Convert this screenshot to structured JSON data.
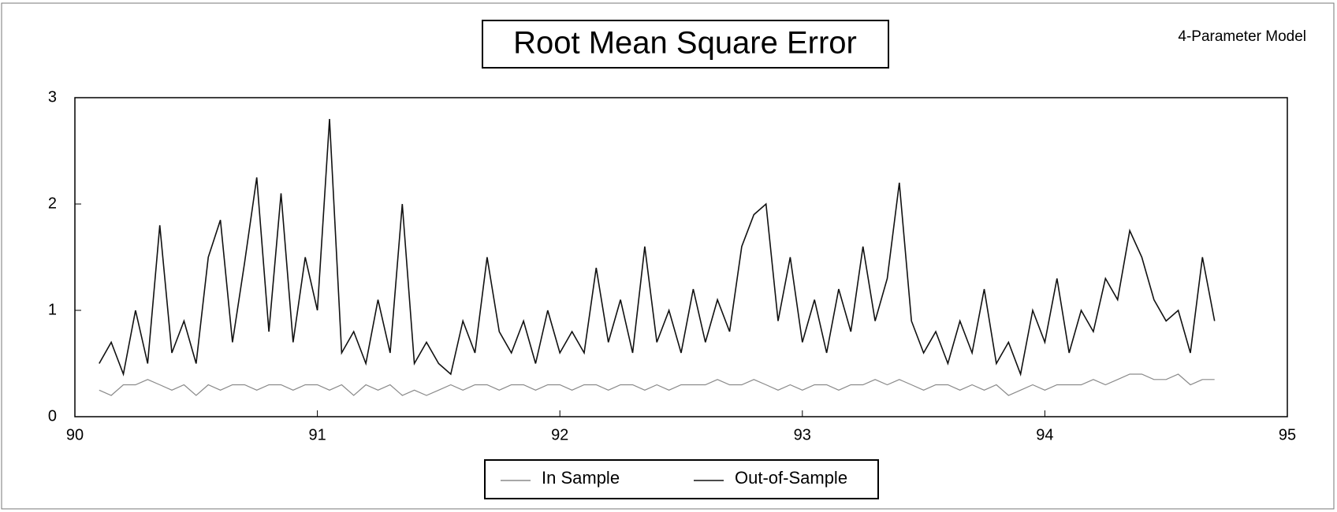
{
  "chart_data": {
    "type": "line",
    "title": "Root Mean Square Error",
    "subtitle": "4-Parameter Model",
    "x": [
      90.1,
      90.15,
      90.2,
      90.25,
      90.3,
      90.35,
      90.4,
      90.45,
      90.5,
      90.55,
      90.6,
      90.65,
      90.7,
      90.75,
      90.8,
      90.85,
      90.9,
      90.95,
      91.0,
      91.05,
      91.1,
      91.15,
      91.2,
      91.25,
      91.3,
      91.35,
      91.4,
      91.45,
      91.5,
      91.55,
      91.6,
      91.65,
      91.7,
      91.75,
      91.8,
      91.85,
      91.9,
      91.95,
      92.0,
      92.05,
      92.1,
      92.15,
      92.2,
      92.25,
      92.3,
      92.35,
      92.4,
      92.45,
      92.5,
      92.55,
      92.6,
      92.65,
      92.7,
      92.75,
      92.8,
      92.85,
      92.9,
      92.95,
      93.0,
      93.05,
      93.1,
      93.15,
      93.2,
      93.25,
      93.3,
      93.35,
      93.4,
      93.45,
      93.5,
      93.55,
      93.6,
      93.65,
      93.7,
      93.75,
      93.8,
      93.85,
      93.9,
      93.95,
      94.0,
      94.05,
      94.1,
      94.15,
      94.2,
      94.25,
      94.3,
      94.35,
      94.4,
      94.45,
      94.5,
      94.55,
      94.6,
      94.65,
      94.7
    ],
    "series": [
      {
        "name": "In Sample",
        "color": "#8a8a8a",
        "values": [
          0.25,
          0.2,
          0.3,
          0.3,
          0.35,
          0.3,
          0.25,
          0.3,
          0.2,
          0.3,
          0.25,
          0.3,
          0.3,
          0.25,
          0.3,
          0.3,
          0.25,
          0.3,
          0.3,
          0.25,
          0.3,
          0.2,
          0.3,
          0.25,
          0.3,
          0.2,
          0.25,
          0.2,
          0.25,
          0.3,
          0.25,
          0.3,
          0.3,
          0.25,
          0.3,
          0.3,
          0.25,
          0.3,
          0.3,
          0.25,
          0.3,
          0.3,
          0.25,
          0.3,
          0.3,
          0.25,
          0.3,
          0.25,
          0.3,
          0.3,
          0.3,
          0.35,
          0.3,
          0.3,
          0.35,
          0.3,
          0.25,
          0.3,
          0.25,
          0.3,
          0.3,
          0.25,
          0.3,
          0.3,
          0.35,
          0.3,
          0.35,
          0.3,
          0.25,
          0.3,
          0.3,
          0.25,
          0.3,
          0.25,
          0.3,
          0.2,
          0.25,
          0.3,
          0.25,
          0.3,
          0.3,
          0.3,
          0.35,
          0.3,
          0.35,
          0.4,
          0.4,
          0.35,
          0.35,
          0.4,
          0.3,
          0.35,
          0.35
        ]
      },
      {
        "name": "Out-of-Sample",
        "color": "#111111",
        "values": [
          0.5,
          0.7,
          0.4,
          1.0,
          0.5,
          1.8,
          0.6,
          0.9,
          0.5,
          1.5,
          1.85,
          0.7,
          1.45,
          2.25,
          0.8,
          2.1,
          0.7,
          1.5,
          1.0,
          2.8,
          0.6,
          0.8,
          0.5,
          1.1,
          0.6,
          2.0,
          0.5,
          0.7,
          0.5,
          0.4,
          0.9,
          0.6,
          1.5,
          0.8,
          0.6,
          0.9,
          0.5,
          1.0,
          0.6,
          0.8,
          0.6,
          1.4,
          0.7,
          1.1,
          0.6,
          1.6,
          0.7,
          1.0,
          0.6,
          1.2,
          0.7,
          1.1,
          0.8,
          1.6,
          1.9,
          2.0,
          0.9,
          1.5,
          0.7,
          1.1,
          0.6,
          1.2,
          0.8,
          1.6,
          0.9,
          1.3,
          2.2,
          0.9,
          0.6,
          0.8,
          0.5,
          0.9,
          0.6,
          1.2,
          0.5,
          0.7,
          0.4,
          1.0,
          0.7,
          1.3,
          0.6,
          1.0,
          0.8,
          1.3,
          1.1,
          1.75,
          1.5,
          1.1,
          0.9,
          1.0,
          0.6,
          1.5,
          0.9
        ]
      }
    ],
    "xlim": [
      90,
      95
    ],
    "xticks": [
      90,
      91,
      92,
      93,
      94,
      95
    ],
    "ylim": [
      0,
      3
    ],
    "yticks": [
      0,
      1,
      2,
      3
    ],
    "legend": "bottom"
  }
}
